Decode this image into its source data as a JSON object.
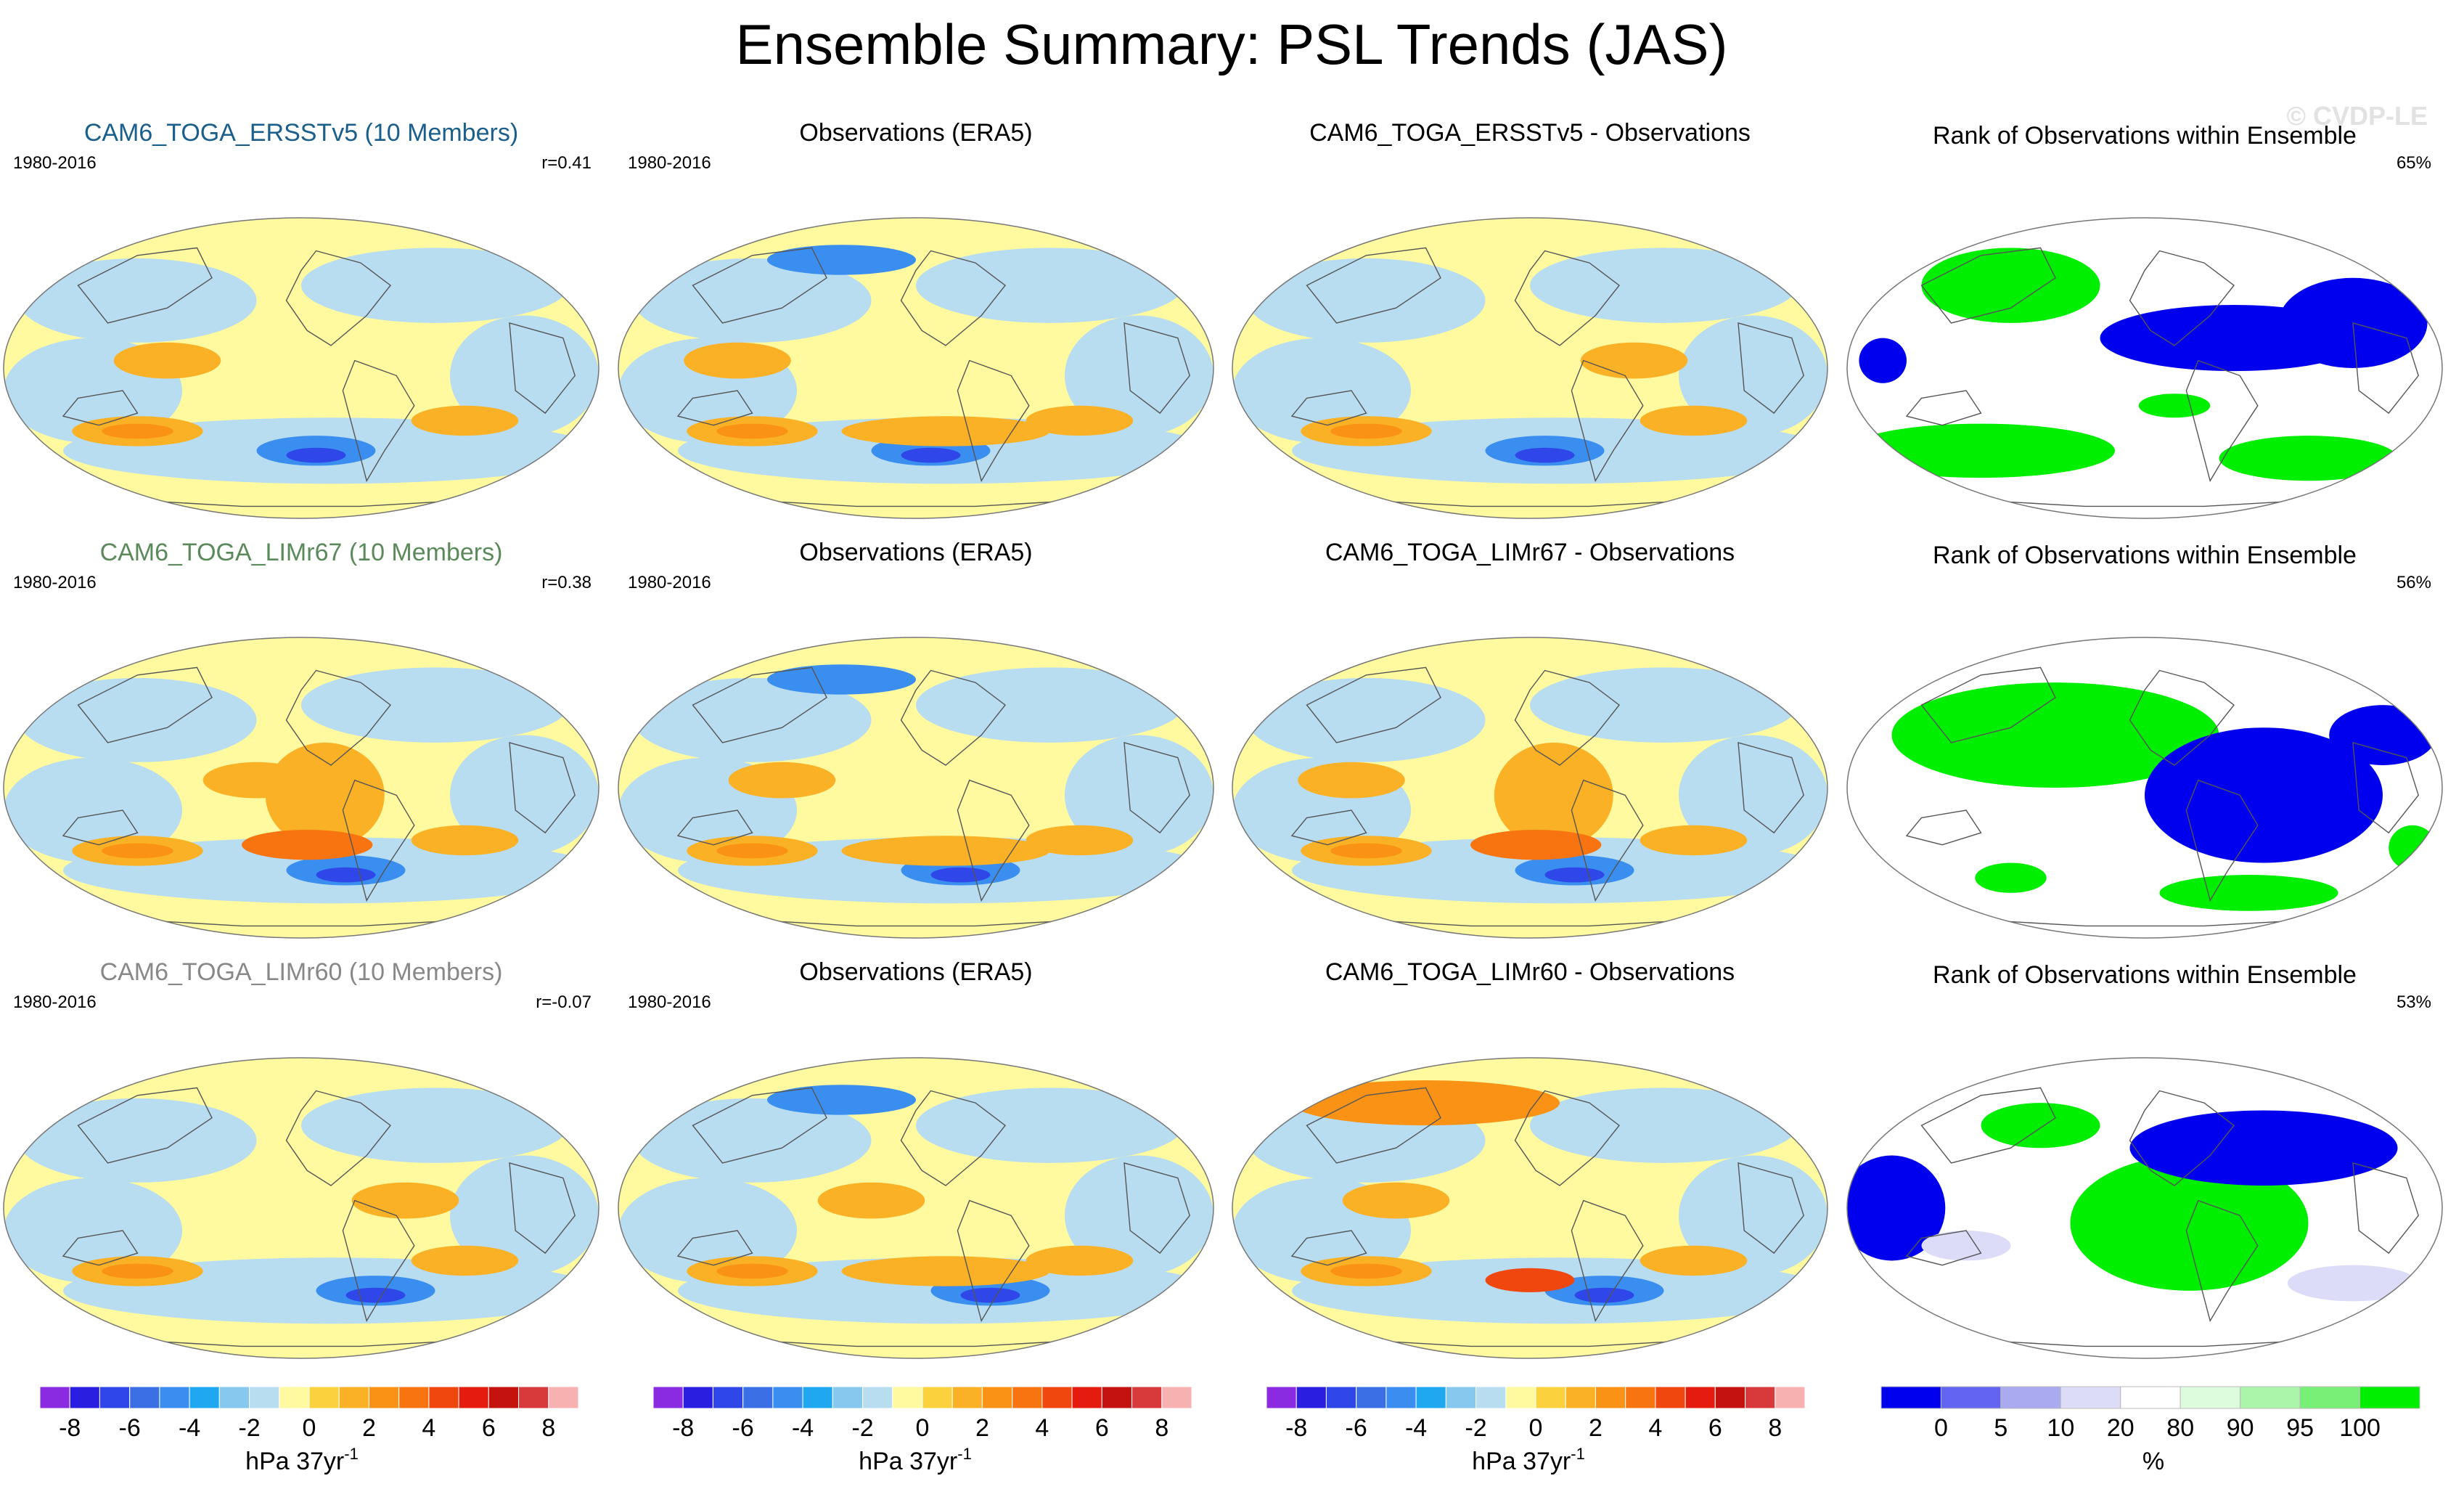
{
  "title": "Ensemble Summary: PSL Trends (JAS)",
  "watermark": "© CVDP-LE",
  "rows": [
    {
      "model_label": "CAM6_TOGA_ERSSTv5 (10 Members)",
      "model_label_color": "#1a5f8c",
      "period": "1980-2016",
      "r_label": "r=0.41",
      "obs_title": "Observations (ERA5)",
      "obs_period": "1980-2016",
      "diff_title": "CAM6_TOGA_ERSSTv5 - Observations",
      "rank_title": "Rank of Observations within Ensemble",
      "rank_pct": "65%"
    },
    {
      "model_label": "CAM6_TOGA_LIMr67 (10 Members)",
      "model_label_color": "#5a8a5a",
      "period": "1980-2016",
      "r_label": "r=0.38",
      "obs_title": "Observations (ERA5)",
      "obs_period": "1980-2016",
      "diff_title": "CAM6_TOGA_LIMr67 - Observations",
      "rank_title": "Rank of Observations within Ensemble",
      "rank_pct": "56%"
    },
    {
      "model_label": "CAM6_TOGA_LIMr60 (10 Members)",
      "model_label_color": "#888888",
      "period": "1980-2016",
      "r_label": "r=-0.07",
      "obs_title": "Observations (ERA5)",
      "obs_period": "1980-2016",
      "diff_title": "CAM6_TOGA_LIMr60 - Observations",
      "rank_title": "Rank of Observations within Ensemble",
      "rank_pct": "53%"
    }
  ],
  "chart_data": [
    {
      "type": "heatmap",
      "description_role": "psl trend colorbar (shared by model, observation and difference maps)",
      "levels": [
        -8,
        -7,
        -6,
        -5,
        -4,
        -3,
        -2,
        -1,
        0,
        1,
        2,
        3,
        4,
        5,
        6,
        7,
        8
      ],
      "tick_labels": [
        "-8",
        "-6",
        "-4",
        "-2",
        "0",
        "2",
        "4",
        "6",
        "8"
      ],
      "colors": [
        "#8a2be2",
        "#2a1ee0",
        "#2f47e8",
        "#3a6fe6",
        "#3a8ef0",
        "#1fa7f0",
        "#86c8ee",
        "#b8dcf0",
        "#fffaa0",
        "#fbd23e",
        "#fbb125",
        "#f99215",
        "#f87410",
        "#f0470f",
        "#e51b10",
        "#c4120f",
        "#d8393b",
        "#f7b1b1"
      ],
      "unit_label": "hPa 37yr",
      "unit_exponent": "-1"
    },
    {
      "type": "heatmap",
      "description_role": "rank colorbar",
      "colors": [
        "#0000ee",
        "#6464f2",
        "#aaaaf0",
        "#dcdcf8",
        "#ffffff",
        "#ddfbdd",
        "#aaf5aa",
        "#78f078",
        "#00ee00"
      ],
      "tick_labels": [
        "0",
        "5",
        "10",
        "20",
        "80",
        "90",
        "95",
        "100"
      ],
      "unit_label": "%"
    }
  ]
}
